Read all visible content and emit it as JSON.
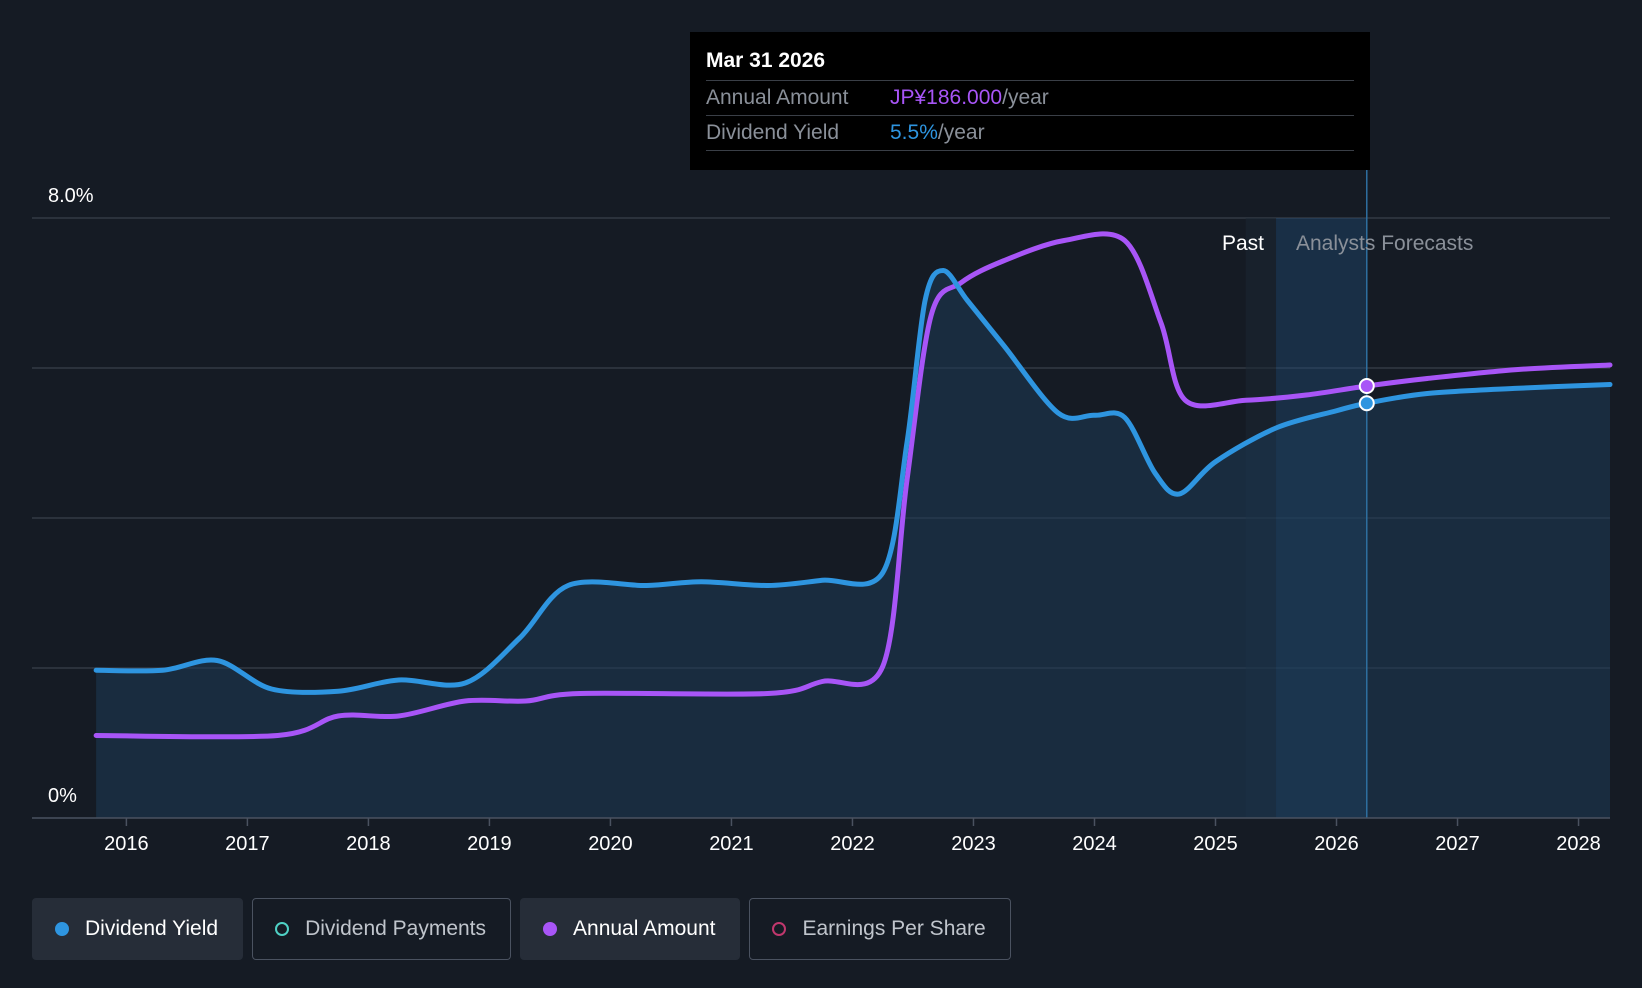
{
  "colors": {
    "background": "#151b24",
    "dividend_yield": "#2e95e0",
    "annual_amount": "#a855f7",
    "dividend_payments": "#4fd1c5",
    "earnings_per_share": "#c0376d",
    "grid": "#333a45"
  },
  "tooltip": {
    "date": "Mar 31 2026",
    "rows": [
      {
        "label": "Annual Amount",
        "value": "JP¥186.000",
        "unit": "/year"
      },
      {
        "label": "Dividend Yield",
        "value": "5.5%",
        "unit": "/year"
      }
    ]
  },
  "legend": [
    {
      "label": "Dividend Yield",
      "icon": "filled-dot",
      "color": "#2e95e0",
      "active": true
    },
    {
      "label": "Dividend Payments",
      "icon": "hollow-dot",
      "color": "#4fd1c5",
      "active": false
    },
    {
      "label": "Annual Amount",
      "icon": "filled-dot",
      "color": "#a855f7",
      "active": true
    },
    {
      "label": "Earnings Per Share",
      "icon": "hollow-dot",
      "color": "#c0376d",
      "active": false
    }
  ],
  "chart_data": {
    "type": "line",
    "y_axis_labels": [
      "8.0%",
      "0%"
    ],
    "ylim": [
      0,
      8
    ],
    "xlim": [
      2015.22,
      2028.26
    ],
    "x_ticks": [
      "2016",
      "2017",
      "2018",
      "2019",
      "2020",
      "2021",
      "2022",
      "2023",
      "2024",
      "2025",
      "2026",
      "2027",
      "2028"
    ],
    "x_tick_values": [
      2016,
      2017,
      2018,
      2019,
      2020,
      2021,
      2022,
      2023,
      2024,
      2025,
      2026,
      2027,
      2028
    ],
    "grid_values": [
      2,
      4,
      6,
      8
    ],
    "past_label": "Past",
    "forecast_label": "Analysts Forecasts",
    "past_end": 2025.25,
    "forecast_start": 2025.5,
    "cursor_x": 2026.25,
    "series": [
      {
        "name": "Dividend Yield",
        "color": "#2e95e0",
        "area": true,
        "marker_x": 2026.25,
        "points": [
          [
            2015.75,
            1.97
          ],
          [
            2016.3,
            1.97
          ],
          [
            2016.75,
            2.1
          ],
          [
            2017.2,
            1.72
          ],
          [
            2017.75,
            1.69
          ],
          [
            2018.25,
            1.84
          ],
          [
            2018.8,
            1.8
          ],
          [
            2019.25,
            2.4
          ],
          [
            2019.65,
            3.1
          ],
          [
            2020.3,
            3.1
          ],
          [
            2020.75,
            3.15
          ],
          [
            2021.3,
            3.1
          ],
          [
            2021.75,
            3.17
          ],
          [
            2022.25,
            3.27
          ],
          [
            2022.45,
            5.0
          ],
          [
            2022.6,
            6.9
          ],
          [
            2022.75,
            7.3
          ],
          [
            2022.95,
            6.9
          ],
          [
            2023.25,
            6.3
          ],
          [
            2023.7,
            5.4
          ],
          [
            2024.0,
            5.37
          ],
          [
            2024.25,
            5.34
          ],
          [
            2024.5,
            4.6
          ],
          [
            2024.7,
            4.32
          ],
          [
            2025.0,
            4.75
          ],
          [
            2025.5,
            5.2
          ],
          [
            2026.0,
            5.43
          ],
          [
            2026.25,
            5.53
          ],
          [
            2026.75,
            5.66
          ],
          [
            2027.5,
            5.73
          ],
          [
            2028.26,
            5.78
          ]
        ]
      },
      {
        "name": "Annual Amount",
        "color": "#a855f7",
        "area": false,
        "marker_x": 2026.25,
        "points": [
          [
            2015.75,
            1.1
          ],
          [
            2017.25,
            1.1
          ],
          [
            2017.75,
            1.36
          ],
          [
            2018.25,
            1.36
          ],
          [
            2018.8,
            1.56
          ],
          [
            2019.3,
            1.56
          ],
          [
            2019.75,
            1.66
          ],
          [
            2021.3,
            1.66
          ],
          [
            2021.75,
            1.82
          ],
          [
            2022.25,
            2.02
          ],
          [
            2022.45,
            4.5
          ],
          [
            2022.65,
            6.7
          ],
          [
            2022.9,
            7.14
          ],
          [
            2023.25,
            7.43
          ],
          [
            2023.75,
            7.7
          ],
          [
            2024.25,
            7.7
          ],
          [
            2024.55,
            6.6
          ],
          [
            2024.75,
            5.57
          ],
          [
            2025.25,
            5.57
          ],
          [
            2025.75,
            5.64
          ],
          [
            2026.25,
            5.76
          ],
          [
            2026.75,
            5.86
          ],
          [
            2027.5,
            5.98
          ],
          [
            2028.26,
            6.04
          ]
        ]
      }
    ]
  }
}
